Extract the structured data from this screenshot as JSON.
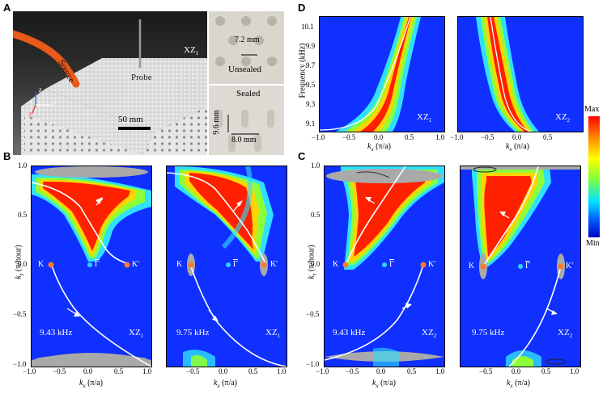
{
  "panels": {
    "A": {
      "letter": "A",
      "labels": {
        "xz1": "XZ",
        "xz1_sub": "1",
        "source": "Source",
        "probe": "Probe",
        "scale": "50 mm",
        "ax_z": "z",
        "ax_x": "x",
        "ax_y": "y"
      },
      "unsealed": {
        "label": "Unsealed",
        "dim": "7.2 mm"
      },
      "sealed": {
        "label": "Sealed",
        "dim_v": "9.6 mm",
        "dim_h": "8.0 mm"
      }
    },
    "D": {
      "letter": "D",
      "ylabel": "Frequency (kHz)",
      "yticks": [
        "10.1",
        "9.9",
        "9.7",
        "9.5",
        "9.3",
        "9.1"
      ],
      "xticks_left": [
        "−1.0",
        "−0.5",
        "0.0",
        "0.5",
        "1.0"
      ],
      "xticks_right": [
        "−1.0",
        "−0.5",
        "0.0",
        "0.5"
      ],
      "xlabel": "k",
      "xlabel_sub": "x",
      "xlabel_unit": " (π/a)",
      "left_tag": "XZ",
      "left_tag_sub": "1",
      "right_tag": "XZ",
      "right_tag_sub": "2"
    },
    "colorbar": {
      "max": "Max",
      "min": "Min"
    },
    "B": {
      "letter": "B",
      "ylabel": "k",
      "ylabel_sub": "z",
      "ylabel_unit": " (π/hour)",
      "yticks": [
        "1.0",
        "0.5",
        "0.0",
        "−0.5",
        "−1.0"
      ],
      "xticks_left": [
        "−1.0",
        "−0.5",
        "0.0",
        "0.5",
        "1.0"
      ],
      "xticks_right": [
        "−0.5",
        "0.0",
        "0.5",
        "1.0"
      ],
      "xlabel": "k",
      "xlabel_sub": "x",
      "xlabel_unit": " (π/a)",
      "K": "K",
      "Kp": "K'",
      "G": "Γ",
      "left_freq": "9.43 kHz",
      "right_freq": "9.75 kHz",
      "tag": "XZ",
      "tag_sub": "1"
    },
    "C": {
      "letter": "C",
      "ylabel": "k",
      "ylabel_sub": "z",
      "ylabel_unit": " (π/hour)",
      "yticks": [
        "1.0",
        "0.5",
        "0.0",
        "−0.5",
        "−1.0"
      ],
      "xticks_left": [
        "−1.0",
        "−0.5",
        "0.0",
        "0.5",
        "1.0"
      ],
      "xticks_right": [
        "−0.5",
        "0.0",
        "0.5",
        "1.0"
      ],
      "xlabel": "k",
      "xlabel_sub": "x",
      "xlabel_unit": " (π/a)",
      "K": "K",
      "Kp": "K'",
      "G": "Γ",
      "left_freq": "9.43 kHz",
      "right_freq": "9.75 kHz",
      "tag": "XZ",
      "tag_sub": "2"
    }
  }
}
